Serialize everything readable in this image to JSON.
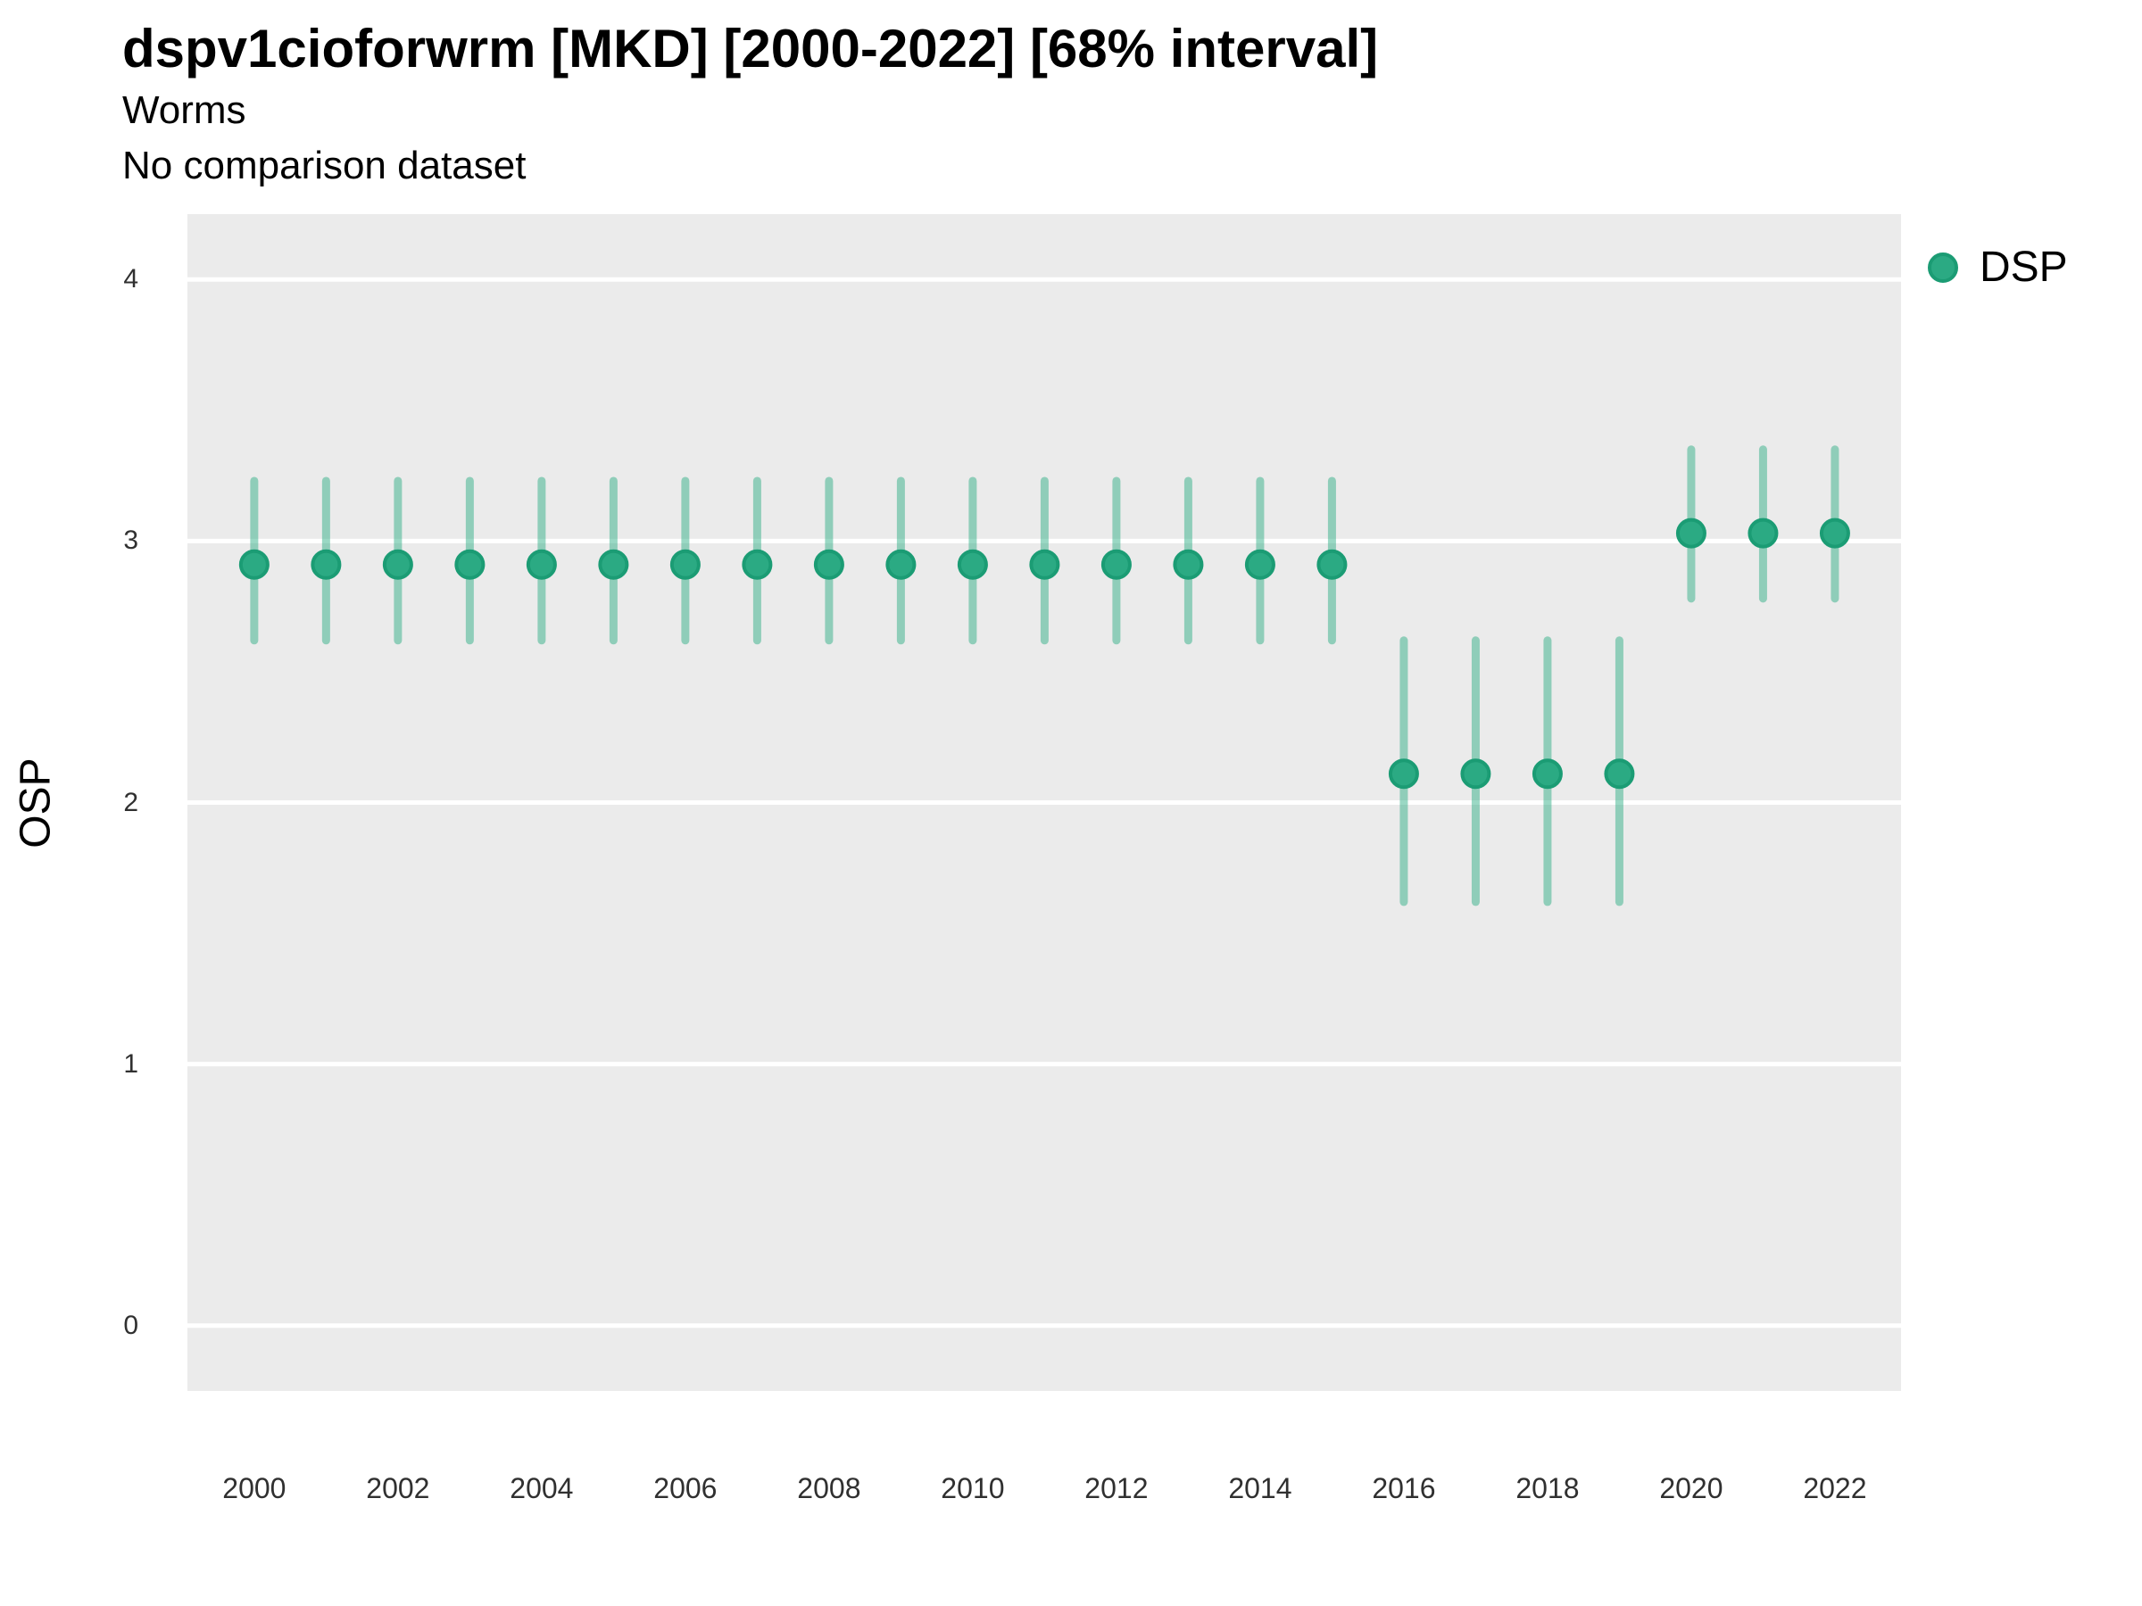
{
  "header": {
    "title": "dspv1cioforwrm [MKD] [2000-2022] [68% interval]",
    "subtitle1": "Worms",
    "subtitle2": "No comparison dataset"
  },
  "axes": {
    "y_label": "OSP",
    "y_ticks": [
      4,
      3,
      2,
      1,
      0
    ],
    "x_ticks": [
      2000,
      2002,
      2004,
      2006,
      2008,
      2010,
      2012,
      2014,
      2016,
      2018,
      2020,
      2022
    ]
  },
  "legend": {
    "items": [
      {
        "label": "DSP",
        "color": "#2BAA83"
      }
    ]
  },
  "colors": {
    "panel_background": "#EBEBEB",
    "gridline": "#FFFFFF",
    "point_fill": "#2BAA83",
    "point_stroke": "#1B9C74",
    "interval_line": "rgba(31,168,124,0.45)",
    "axis_text": "#303030"
  },
  "chart_data": {
    "type": "scatter",
    "title": "dspv1cioforwrm [MKD] [2000-2022] [68% interval]",
    "subtitle": [
      "Worms",
      "No comparison dataset"
    ],
    "xlabel": "",
    "ylabel": "OSP",
    "ylim": [
      -0.25,
      4.25
    ],
    "xlim": [
      1999.07,
      2022.92
    ],
    "grid": "major-horizontal-only",
    "legend_position": "top-right",
    "interval_label": "68% interval",
    "series": [
      {
        "name": "DSP",
        "x": [
          2000,
          2001,
          2002,
          2003,
          2004,
          2005,
          2006,
          2007,
          2008,
          2009,
          2010,
          2011,
          2012,
          2013,
          2014,
          2015,
          2016,
          2017,
          2018,
          2019,
          2020,
          2021,
          2022
        ],
        "y": [
          2.91,
          2.91,
          2.91,
          2.91,
          2.91,
          2.91,
          2.91,
          2.91,
          2.91,
          2.91,
          2.91,
          2.91,
          2.91,
          2.91,
          2.91,
          2.91,
          2.11,
          2.11,
          2.11,
          2.11,
          3.03,
          3.03,
          3.03
        ],
        "y_lo": [
          2.62,
          2.62,
          2.62,
          2.62,
          2.62,
          2.62,
          2.62,
          2.62,
          2.62,
          2.62,
          2.62,
          2.62,
          2.62,
          2.62,
          2.62,
          2.62,
          1.62,
          1.62,
          1.62,
          1.62,
          2.78,
          2.78,
          2.78
        ],
        "y_hi": [
          3.23,
          3.23,
          3.23,
          3.23,
          3.23,
          3.23,
          3.23,
          3.23,
          3.23,
          3.23,
          3.23,
          3.23,
          3.23,
          3.23,
          3.23,
          3.23,
          2.62,
          2.62,
          2.62,
          2.62,
          3.35,
          3.35,
          3.35
        ]
      }
    ]
  }
}
